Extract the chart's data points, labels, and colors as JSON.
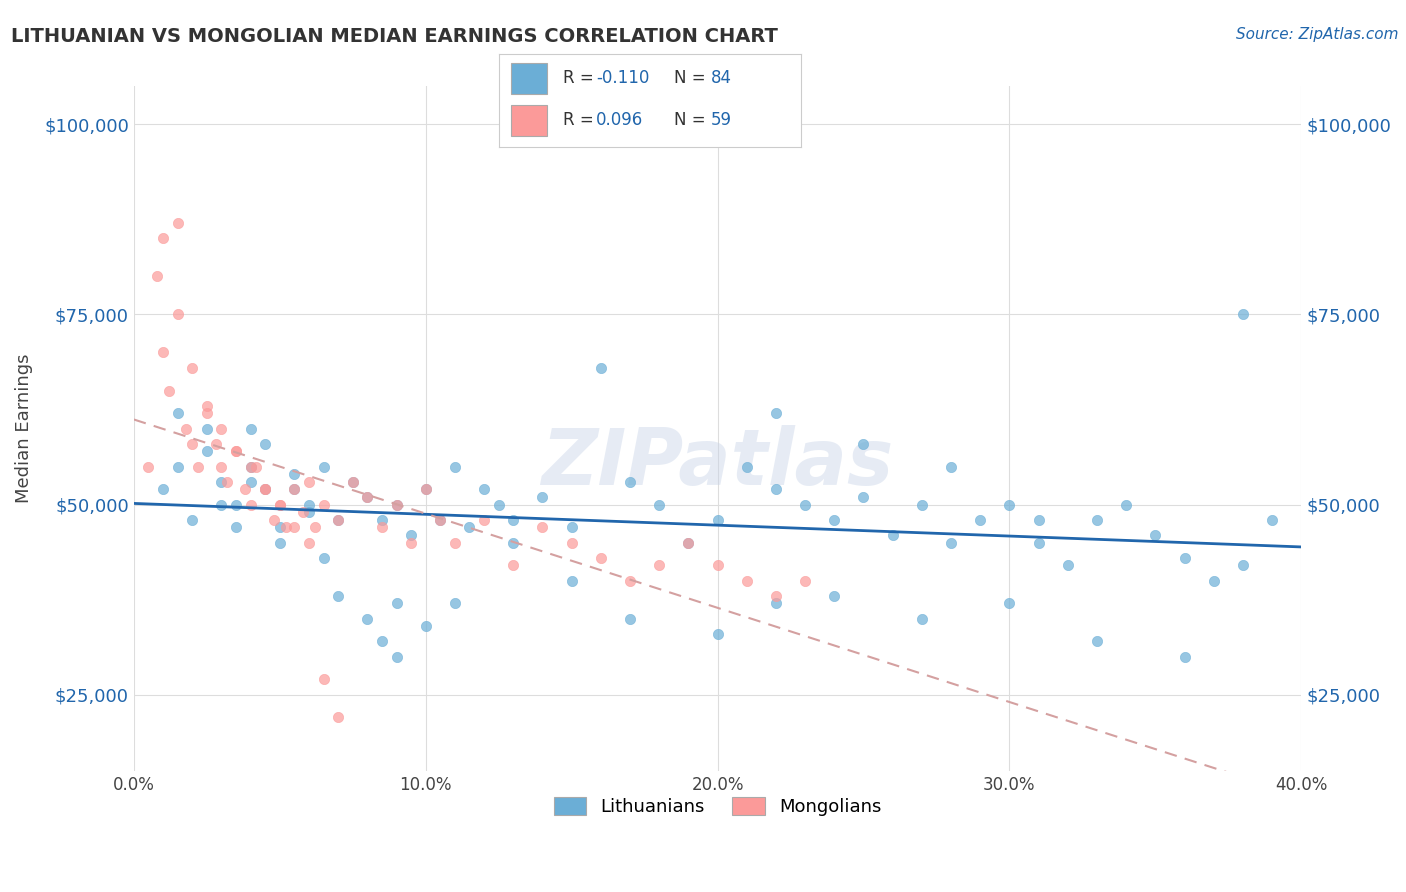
{
  "title": "LITHUANIAN VS MONGOLIAN MEDIAN EARNINGS CORRELATION CHART",
  "source_text": "Source: ZipAtlas.com",
  "ylabel": "Median Earnings",
  "xlim": [
    0.0,
    0.4
  ],
  "ylim": [
    15000,
    105000
  ],
  "yticks": [
    25000,
    50000,
    75000,
    100000
  ],
  "ytick_labels": [
    "$25,000",
    "$50,000",
    "$75,000",
    "$100,000"
  ],
  "xticks": [
    0.0,
    0.1,
    0.2,
    0.3,
    0.4
  ],
  "xtick_labels": [
    "0.0%",
    "10.0%",
    "20.0%",
    "30.0%",
    "40.0%"
  ],
  "lithuanian_color": "#6baed6",
  "mongolian_color": "#fb9a99",
  "trendline_lithuanian_color": "#2166ac",
  "trendline_mongolian_color": "#d4a0a0",
  "R_lithuanian": -0.11,
  "N_lithuanian": 84,
  "R_mongolian": 0.096,
  "N_mongolian": 59,
  "watermark": "ZIPatlas",
  "background_color": "#ffffff",
  "legend_label_1": "Lithuanians",
  "legend_label_2": "Mongolians",
  "lithuanian_x": [
    0.01,
    0.015,
    0.02,
    0.025,
    0.03,
    0.035,
    0.04,
    0.045,
    0.05,
    0.055,
    0.06,
    0.065,
    0.07,
    0.075,
    0.08,
    0.085,
    0.09,
    0.095,
    0.1,
    0.105,
    0.11,
    0.115,
    0.12,
    0.125,
    0.13,
    0.14,
    0.15,
    0.16,
    0.17,
    0.18,
    0.19,
    0.2,
    0.21,
    0.22,
    0.23,
    0.24,
    0.25,
    0.26,
    0.27,
    0.28,
    0.29,
    0.3,
    0.31,
    0.32,
    0.33,
    0.34,
    0.35,
    0.36,
    0.37,
    0.38,
    0.39,
    0.015,
    0.025,
    0.03,
    0.035,
    0.04,
    0.045,
    0.05,
    0.055,
    0.06,
    0.065,
    0.07,
    0.08,
    0.085,
    0.09,
    0.09,
    0.1,
    0.11,
    0.13,
    0.15,
    0.17,
    0.2,
    0.22,
    0.24,
    0.27,
    0.3,
    0.33,
    0.36,
    0.38,
    0.22,
    0.25,
    0.28,
    0.31,
    0.04
  ],
  "lithuanian_y": [
    52000,
    55000,
    48000,
    60000,
    50000,
    47000,
    53000,
    58000,
    45000,
    52000,
    49000,
    55000,
    48000,
    53000,
    51000,
    48000,
    50000,
    46000,
    52000,
    48000,
    55000,
    47000,
    52000,
    50000,
    48000,
    51000,
    47000,
    68000,
    53000,
    50000,
    45000,
    48000,
    55000,
    52000,
    50000,
    48000,
    51000,
    46000,
    50000,
    45000,
    48000,
    50000,
    45000,
    42000,
    48000,
    50000,
    46000,
    43000,
    40000,
    42000,
    48000,
    62000,
    57000,
    53000,
    50000,
    55000,
    52000,
    47000,
    54000,
    50000,
    43000,
    38000,
    35000,
    32000,
    37000,
    30000,
    34000,
    37000,
    45000,
    40000,
    35000,
    33000,
    37000,
    38000,
    35000,
    37000,
    32000,
    30000,
    75000,
    62000,
    58000,
    55000,
    48000,
    60000
  ],
  "mongolian_x": [
    0.005,
    0.008,
    0.01,
    0.012,
    0.015,
    0.018,
    0.02,
    0.022,
    0.025,
    0.028,
    0.03,
    0.032,
    0.035,
    0.038,
    0.04,
    0.042,
    0.045,
    0.048,
    0.05,
    0.052,
    0.055,
    0.058,
    0.06,
    0.062,
    0.065,
    0.07,
    0.075,
    0.08,
    0.085,
    0.09,
    0.095,
    0.1,
    0.105,
    0.11,
    0.12,
    0.13,
    0.14,
    0.15,
    0.16,
    0.17,
    0.18,
    0.19,
    0.2,
    0.21,
    0.22,
    0.23,
    0.01,
    0.015,
    0.02,
    0.025,
    0.03,
    0.035,
    0.04,
    0.045,
    0.05,
    0.055,
    0.06,
    0.065,
    0.07
  ],
  "mongolian_y": [
    55000,
    80000,
    70000,
    65000,
    75000,
    60000,
    58000,
    55000,
    62000,
    58000,
    55000,
    53000,
    57000,
    52000,
    50000,
    55000,
    52000,
    48000,
    50000,
    47000,
    52000,
    49000,
    53000,
    47000,
    50000,
    48000,
    53000,
    51000,
    47000,
    50000,
    45000,
    52000,
    48000,
    45000,
    48000,
    42000,
    47000,
    45000,
    43000,
    40000,
    42000,
    45000,
    42000,
    40000,
    38000,
    40000,
    85000,
    87000,
    68000,
    63000,
    60000,
    57000,
    55000,
    52000,
    50000,
    47000,
    45000,
    27000,
    22000
  ]
}
